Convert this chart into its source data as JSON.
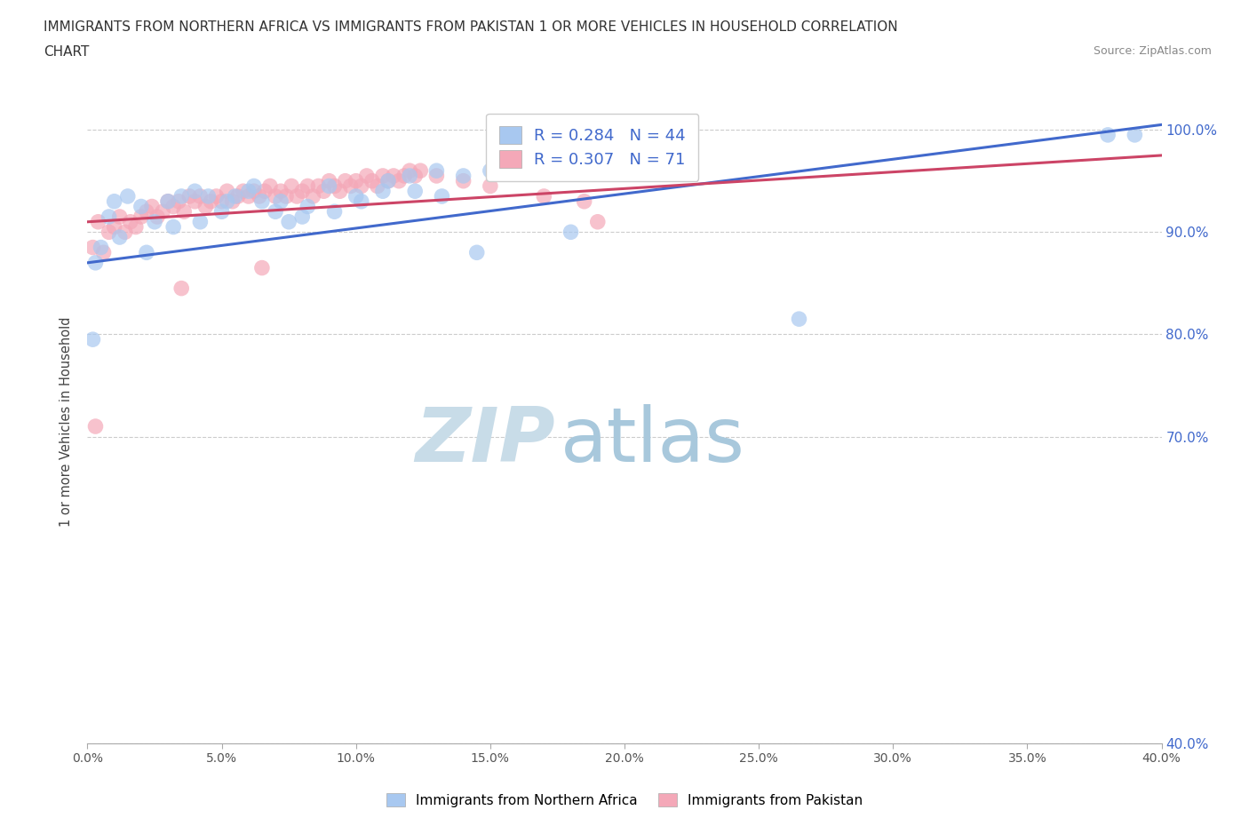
{
  "title_line1": "IMMIGRANTS FROM NORTHERN AFRICA VS IMMIGRANTS FROM PAKISTAN 1 OR MORE VEHICLES IN HOUSEHOLD CORRELATION",
  "title_line2": "CHART",
  "source": "Source: ZipAtlas.com",
  "ylabel": "1 or more Vehicles in Household",
  "legend_blue_label": "Immigrants from Northern Africa",
  "legend_pink_label": "Immigrants from Pakistan",
  "R_blue": 0.284,
  "N_blue": 44,
  "R_pink": 0.307,
  "N_pink": 71,
  "blue_color": "#a8c8f0",
  "pink_color": "#f4a8b8",
  "trendline_blue": "#4169cc",
  "trendline_pink": "#cc4466",
  "watermark_zip_color": "#c8dce8",
  "watermark_atlas_color": "#a8c8dc",
  "x_min": 0.0,
  "x_max": 40.0,
  "y_min": 40.0,
  "y_max": 103.0,
  "y_ticks": [
    40.0,
    70.0,
    80.0,
    90.0,
    100.0
  ],
  "x_ticks": [
    0.0,
    5.0,
    10.0,
    15.0,
    20.0,
    25.0,
    30.0,
    35.0,
    40.0
  ],
  "blue_x": [
    0.3,
    0.5,
    0.8,
    1.0,
    1.5,
    2.0,
    2.5,
    3.0,
    3.5,
    4.0,
    4.5,
    5.0,
    5.5,
    6.0,
    6.5,
    7.0,
    7.5,
    8.0,
    9.0,
    10.0,
    11.0,
    12.0,
    13.0,
    14.0,
    15.0,
    1.2,
    2.2,
    3.2,
    4.2,
    5.2,
    6.2,
    7.2,
    8.2,
    9.2,
    10.2,
    11.2,
    12.2,
    13.2,
    14.5,
    18.0,
    26.5,
    38.0,
    39.0,
    0.2
  ],
  "blue_y": [
    87.0,
    88.5,
    91.5,
    93.0,
    93.5,
    92.5,
    91.0,
    93.0,
    93.5,
    94.0,
    93.5,
    92.0,
    93.5,
    94.0,
    93.0,
    92.0,
    91.0,
    91.5,
    94.5,
    93.5,
    94.0,
    95.5,
    96.0,
    95.5,
    96.0,
    89.5,
    88.0,
    90.5,
    91.0,
    93.0,
    94.5,
    93.0,
    92.5,
    92.0,
    93.0,
    95.0,
    94.0,
    93.5,
    88.0,
    90.0,
    81.5,
    99.5,
    99.5,
    79.5
  ],
  "pink_x": [
    0.2,
    0.4,
    0.6,
    0.8,
    1.0,
    1.2,
    1.4,
    1.6,
    1.8,
    2.0,
    2.2,
    2.4,
    2.6,
    2.8,
    3.0,
    3.2,
    3.4,
    3.6,
    3.8,
    4.0,
    4.2,
    4.4,
    4.6,
    4.8,
    5.0,
    5.2,
    5.4,
    5.6,
    5.8,
    6.0,
    6.2,
    6.4,
    6.6,
    6.8,
    7.0,
    7.2,
    7.4,
    7.6,
    7.8,
    8.0,
    8.2,
    8.4,
    8.6,
    8.8,
    9.0,
    9.2,
    9.4,
    9.6,
    9.8,
    10.0,
    10.2,
    10.4,
    10.6,
    10.8,
    11.0,
    11.2,
    11.4,
    11.6,
    11.8,
    12.0,
    12.2,
    12.4,
    13.0,
    14.0,
    15.0,
    17.0,
    18.5,
    19.0,
    0.3,
    3.5,
    6.5
  ],
  "pink_y": [
    88.5,
    91.0,
    88.0,
    90.0,
    90.5,
    91.5,
    90.0,
    91.0,
    90.5,
    91.5,
    92.0,
    92.5,
    91.5,
    92.0,
    93.0,
    92.5,
    93.0,
    92.0,
    93.5,
    93.0,
    93.5,
    92.5,
    93.0,
    93.5,
    93.0,
    94.0,
    93.0,
    93.5,
    94.0,
    93.5,
    94.0,
    93.5,
    94.0,
    94.5,
    93.5,
    94.0,
    93.5,
    94.5,
    93.5,
    94.0,
    94.5,
    93.5,
    94.5,
    94.0,
    95.0,
    94.5,
    94.0,
    95.0,
    94.5,
    95.0,
    94.5,
    95.5,
    95.0,
    94.5,
    95.5,
    95.0,
    95.5,
    95.0,
    95.5,
    96.0,
    95.5,
    96.0,
    95.5,
    95.0,
    94.5,
    93.5,
    93.0,
    91.0,
    71.0,
    84.5,
    86.5
  ]
}
